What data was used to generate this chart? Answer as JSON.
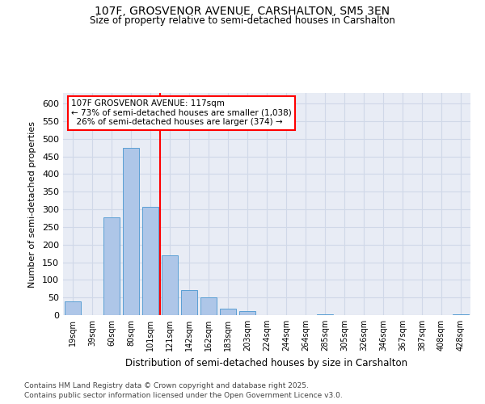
{
  "title1": "107F, GROSVENOR AVENUE, CARSHALTON, SM5 3EN",
  "title2": "Size of property relative to semi-detached houses in Carshalton",
  "xlabel": "Distribution of semi-detached houses by size in Carshalton",
  "ylabel": "Number of semi-detached properties",
  "categories": [
    "19sqm",
    "39sqm",
    "60sqm",
    "80sqm",
    "101sqm",
    "121sqm",
    "142sqm",
    "162sqm",
    "183sqm",
    "203sqm",
    "224sqm",
    "244sqm",
    "264sqm",
    "285sqm",
    "305sqm",
    "326sqm",
    "346sqm",
    "367sqm",
    "387sqm",
    "408sqm",
    "428sqm"
  ],
  "values": [
    40,
    0,
    278,
    475,
    308,
    170,
    70,
    50,
    18,
    11,
    0,
    0,
    0,
    3,
    0,
    0,
    0,
    0,
    0,
    0,
    2
  ],
  "bar_color": "#aec6e8",
  "bar_edge_color": "#5a9fd4",
  "grid_color": "#d0d8e8",
  "bg_color": "#e8ecf5",
  "red_line_x": 4.5,
  "annotation_text": "107F GROSVENOR AVENUE: 117sqm\n← 73% of semi-detached houses are smaller (1,038)\n  26% of semi-detached houses are larger (374) →",
  "footer1": "Contains HM Land Registry data © Crown copyright and database right 2025.",
  "footer2": "Contains public sector information licensed under the Open Government Licence v3.0.",
  "ylim": [
    0,
    630
  ],
  "yticks": [
    0,
    50,
    100,
    150,
    200,
    250,
    300,
    350,
    400,
    450,
    500,
    550,
    600
  ]
}
